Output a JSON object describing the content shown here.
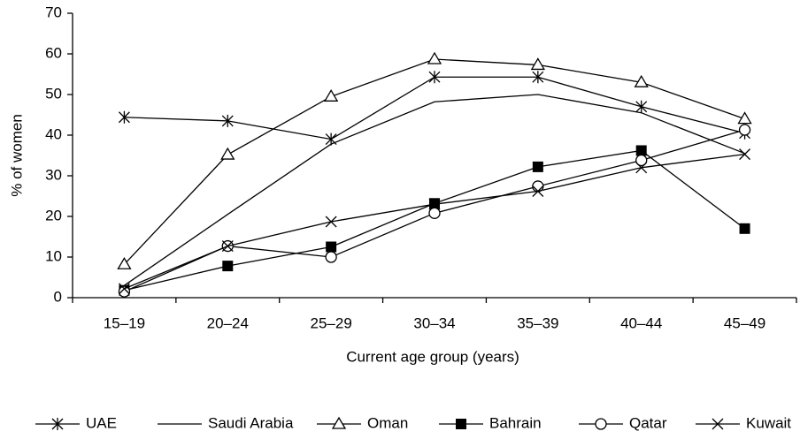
{
  "chart_data": {
    "type": "line",
    "xlabel": "Current age group (years)",
    "ylabel": "% of women",
    "categories": [
      "15–19",
      "20–24",
      "25–29",
      "30–34",
      "35–39",
      "40–44",
      "45–49"
    ],
    "ylim": [
      0,
      70
    ],
    "yticks": [
      0,
      10,
      20,
      30,
      40,
      50,
      60,
      70
    ],
    "legend": "bottom",
    "series": [
      {
        "name": "UAE",
        "color": "#000000",
        "marker": "asterisk",
        "values": [
          44.4,
          43.5,
          39,
          54.3,
          54.3,
          47,
          40.5
        ]
      },
      {
        "name": "Saudi Arabia",
        "color": "#000000",
        "marker": "none",
        "values": [
          3,
          20.5,
          37.8,
          48.2,
          50,
          45.5,
          35.5
        ]
      },
      {
        "name": "Oman",
        "color": "#000000",
        "marker": "triangle",
        "values": [
          8.2,
          35.2,
          49.5,
          58.7,
          57.3,
          53,
          44
        ]
      },
      {
        "name": "Bahrain",
        "color": "#000000",
        "marker": "square",
        "values": [
          1.8,
          7.8,
          12.5,
          23.2,
          32.2,
          36.2,
          17
        ]
      },
      {
        "name": "Qatar",
        "color": "#000000",
        "marker": "circle",
        "values": [
          1.5,
          12.7,
          10,
          20.8,
          27.4,
          33.8,
          41.3
        ]
      },
      {
        "name": "Kuwait",
        "color": "#000000",
        "marker": "cross",
        "values": [
          2.2,
          12.7,
          18.7,
          23,
          26.2,
          32,
          35.3
        ]
      }
    ]
  }
}
